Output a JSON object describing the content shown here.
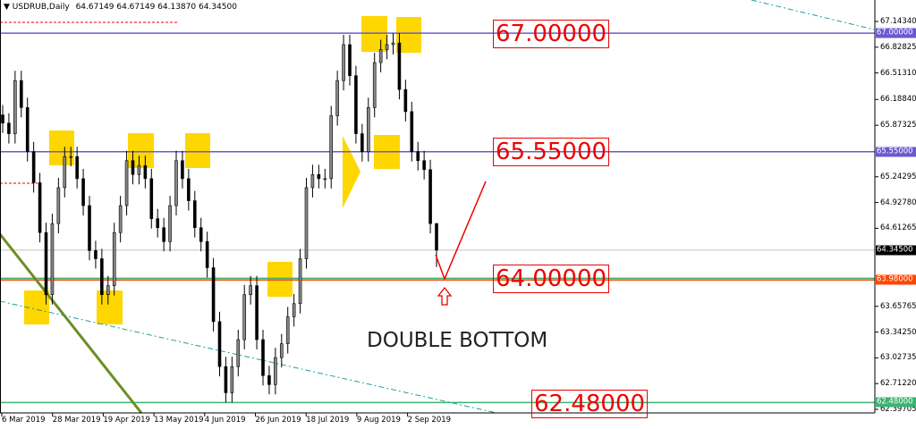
{
  "header": {
    "symbol_label": "USDRUB,Daily",
    "ohlc_readout": "64.67149 64.67149 64.13870 64.34500"
  },
  "colors": {
    "resistance": "#6a5acd",
    "support": "#3cb371",
    "red_level": "#ff4500",
    "bid_tag": "#000000",
    "highlight": "#ffd700",
    "trendline_green": "#6b8e23",
    "channel": "#20a0a0",
    "annotation": "#e00000"
  },
  "annotations": {
    "levels": [
      "67.00000",
      "65.55000",
      "64.00000",
      "62.48000"
    ],
    "pattern": "DOUBLE BOTTOM",
    "arrow_icon": "up-arrow-outline"
  },
  "chart_data": {
    "type": "candlestick",
    "title": "USDRUB,Daily",
    "ylim": [
      62.39705,
      67.1434
    ],
    "y_ticks": [
      "67.14340",
      "66.82825",
      "66.51310",
      "66.18840",
      "65.87325",
      "65.24295",
      "64.92780",
      "64.61265",
      "63.65765",
      "63.34250",
      "63.02735",
      "62.71220",
      "62.39705"
    ],
    "y_tick_values": [
      67.1434,
      66.82825,
      66.5131,
      66.1884,
      65.87325,
      65.24295,
      64.9278,
      64.61265,
      63.65765,
      63.3425,
      63.02735,
      62.7122,
      62.39705
    ],
    "x_ticks": [
      "6 Mar 2019",
      "28 Mar 2019",
      "19 Apr 2019",
      "13 May 2019",
      "4 Jun 2019",
      "26 Jun 2019",
      "18 Jul 2019",
      "9 Aug 2019",
      "2 Sep 2019"
    ],
    "price_tags": [
      {
        "label": "67.00000",
        "value": 67.0,
        "color": "#6a5acd"
      },
      {
        "label": "65.55000",
        "value": 65.55,
        "color": "#6a5acd"
      },
      {
        "label": "64.34500",
        "value": 64.345,
        "color": "#000000"
      },
      {
        "label": "63.98000",
        "value": 63.98,
        "color": "#ff4500"
      },
      {
        "label": "62.48000",
        "value": 62.48,
        "color": "#3cb371"
      }
    ],
    "horizontal_lines": [
      {
        "value": 67.0,
        "color": "#6a5acd"
      },
      {
        "value": 65.55,
        "color": "#6a5acd"
      },
      {
        "value": 64.345,
        "color": "#c0c0c0"
      },
      {
        "value": 64.0,
        "color": "#3cb371"
      },
      {
        "value": 63.98,
        "color": "#ff4500"
      },
      {
        "value": 62.48,
        "color": "#3cb371"
      }
    ],
    "closes": [
      65.9,
      65.77,
      66.42,
      66.09,
      65.55,
      65.17,
      64.56,
      63.8,
      64.67,
      65.11,
      65.49,
      65.49,
      65.22,
      64.89,
      64.34,
      64.24,
      63.8,
      63.91,
      64.56,
      64.89,
      65.44,
      65.27,
      65.38,
      65.22,
      64.73,
      64.62,
      64.45,
      64.89,
      65.44,
      65.22,
      64.95,
      64.62,
      64.45,
      64.13,
      63.47,
      62.92,
      62.6,
      62.92,
      63.25,
      63.8,
      63.91,
      63.25,
      62.81,
      62.7,
      63.03,
      63.2,
      63.53,
      63.69,
      64.24,
      65.11,
      65.27,
      65.22,
      65.22,
      65.99,
      66.42,
      66.86,
      66.48,
      65.77,
      65.55,
      66.09,
      66.64,
      66.8,
      66.86,
      66.88,
      66.31,
      66.04,
      65.55,
      65.44,
      65.33,
      64.67,
      64.345
    ],
    "last_bar": {
      "open": 64.67149,
      "high": 64.67149,
      "low": 64.1387,
      "close": 64.345
    }
  }
}
